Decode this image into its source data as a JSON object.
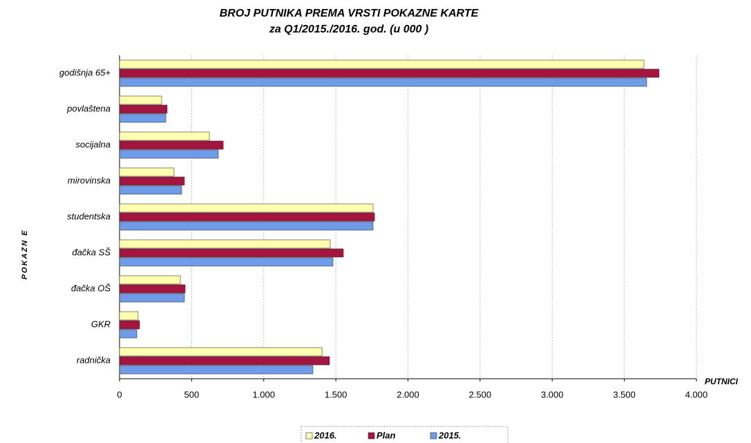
{
  "chart_data": {
    "type": "bar",
    "orientation": "horizontal",
    "title": "BROJ PUTNIKA PREMA VRSTI POKAZNE KARTE",
    "subtitle": "za Q1/2015./2016. god. (u 000 )",
    "xlabel": "PUTNICI",
    "ylabel": "POKAZN E",
    "categories": [
      "godišnja 65+",
      "povlaštena",
      "socijalna",
      "mirovinska",
      "studentska",
      "đačka SŠ",
      "đačka OŠ",
      "GKR",
      "radnička"
    ],
    "series": [
      {
        "name": "2016.",
        "color": "#ffffb0",
        "values": [
          3636,
          292,
          623,
          378,
          1758,
          1461,
          422,
          129,
          1404
        ]
      },
      {
        "name": "Plan",
        "color": "#a3143f",
        "values": [
          3741,
          330,
          719,
          450,
          1768,
          1552,
          455,
          139,
          1456
        ]
      },
      {
        "name": "2015.",
        "color": "#6f9ce8",
        "values": [
          3655,
          321,
          685,
          431,
          1758,
          1480,
          450,
          120,
          1341
        ]
      }
    ],
    "xlim": [
      0,
      4000
    ],
    "xticks": [
      0,
      500,
      {
        "value": 1000,
        "label": "1.000"
      },
      {
        "value": 1500,
        "label": "1.500"
      },
      {
        "value": 2000,
        "label": "2.000"
      },
      {
        "value": 2500,
        "label": "2.500"
      },
      {
        "value": 3000,
        "label": "3.000"
      },
      {
        "value": 3500,
        "label": "3.500"
      },
      {
        "value": 4000,
        "label": "4.000"
      }
    ],
    "grid": true,
    "legend": "bottom"
  }
}
